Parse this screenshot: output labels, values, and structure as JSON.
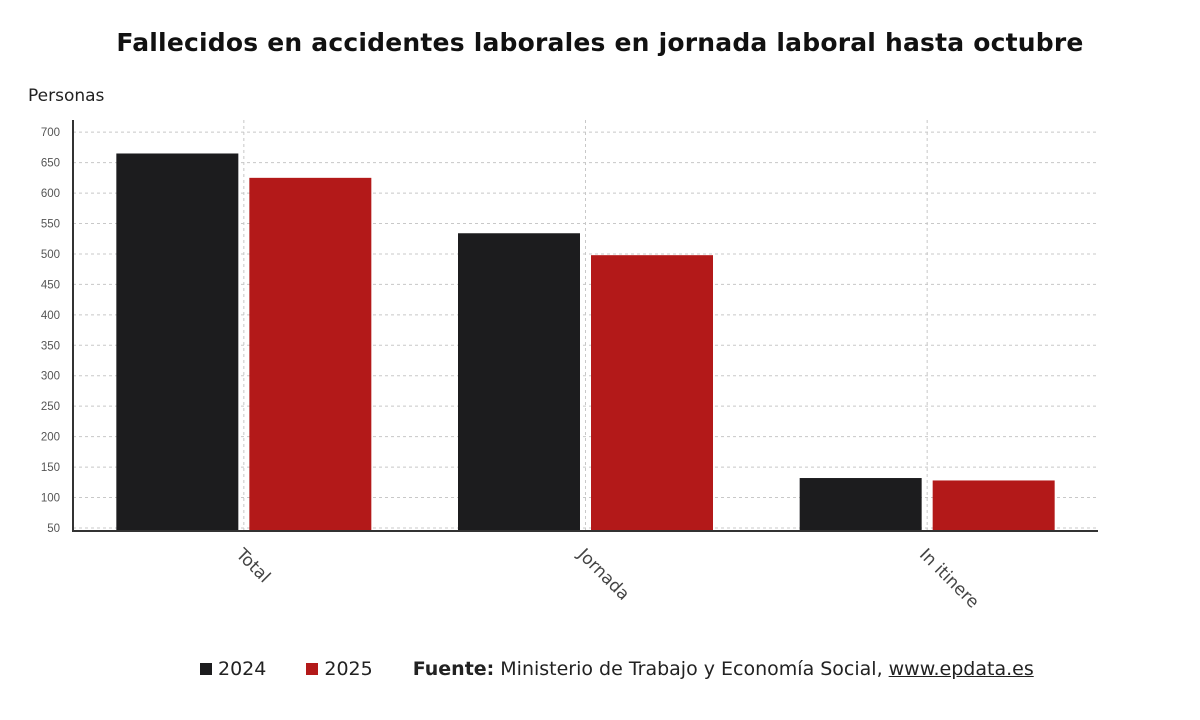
{
  "chart_data": {
    "type": "bar",
    "title": "Fallecidos en accidentes laborales en jornada laboral hasta octubre",
    "ylabel": "Personas",
    "xlabel": "",
    "categories": [
      "Total",
      "Jornada",
      "In itinere"
    ],
    "series": [
      {
        "name": "2024",
        "color": "#1c1c1e",
        "values": [
          665,
          534,
          132
        ]
      },
      {
        "name": "2025",
        "color": "#b31919",
        "values": [
          625,
          498,
          128
        ]
      }
    ],
    "ylim": [
      45,
      720
    ],
    "yticks": [
      50,
      100,
      150,
      200,
      250,
      300,
      350,
      400,
      450,
      500,
      550,
      600,
      650,
      700
    ],
    "grid": true,
    "legend_position": "bottom"
  },
  "footer": {
    "source_label": "Fuente:",
    "source_text": "Ministerio de Trabajo y Economía Social,",
    "source_link": "www.epdata.es"
  }
}
